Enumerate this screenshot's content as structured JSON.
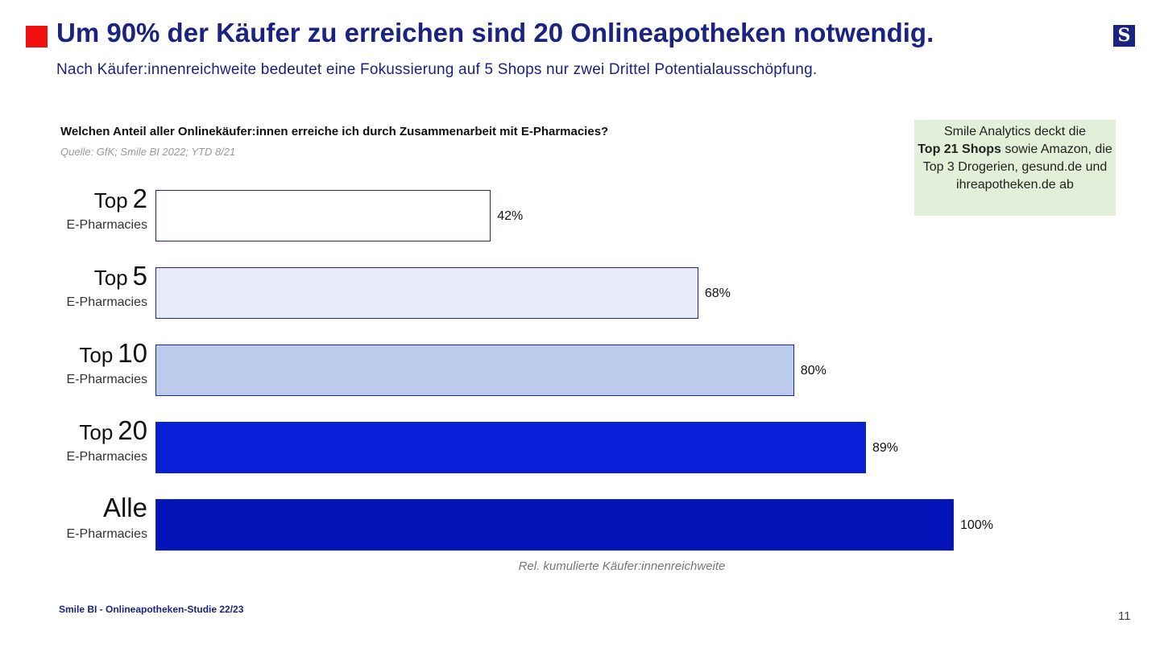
{
  "header": {
    "title": "Um 90% der Käufer zu erreichen sind 20 Onlineapotheken notwendig.",
    "subtitle": "Nach Käufer:innenreichweite bedeutet eine Fokussierung auf 5 Shops nur zwei Drittel Potentialausschöpfung.",
    "logo_letter": "S",
    "accent_color": "#f01010",
    "brand_color": "#1a2380"
  },
  "note": {
    "line1": "Smile Analytics deckt die",
    "bold": "Top 21 Shops",
    "line2": " sowie Amazon, die Top 3 Drogerien, gesund.de und ihreapotheken.de ab"
  },
  "chart_data": {
    "type": "bar",
    "orientation": "horizontal",
    "title": "Welchen Anteil aller Onlinekäufer:innen erreiche ich durch Zusammenarbeit mit E-Pharmacies?",
    "source": "Quelle: GfK; Smile BI 2022; YTD 8/21",
    "xlabel": "Rel. kumulierte Käufer:innenreichweite",
    "xlim": [
      0,
      100
    ],
    "categories": [
      {
        "prefix": "Top",
        "number": "2",
        "sub": "E-Pharmacies"
      },
      {
        "prefix": "Top",
        "number": "5",
        "sub": "E-Pharmacies"
      },
      {
        "prefix": "Top",
        "number": "10",
        "sub": "E-Pharmacies"
      },
      {
        "prefix": "Top",
        "number": "20",
        "sub": "E-Pharmacies"
      },
      {
        "prefix": "",
        "number": "Alle",
        "sub": "E-Pharmacies"
      }
    ],
    "values": [
      42,
      68,
      80,
      89,
      100
    ],
    "value_labels": [
      "42%",
      "68%",
      "80%",
      "89%",
      "100%"
    ],
    "colors": [
      "#ffffff",
      "#e8ecf8",
      "#bccbec",
      "#0a1fd8",
      "#0414b8"
    ],
    "grid": false
  },
  "footer": {
    "text": "Smile BI - Onlineapotheken-Studie 22/23",
    "page": "11"
  }
}
